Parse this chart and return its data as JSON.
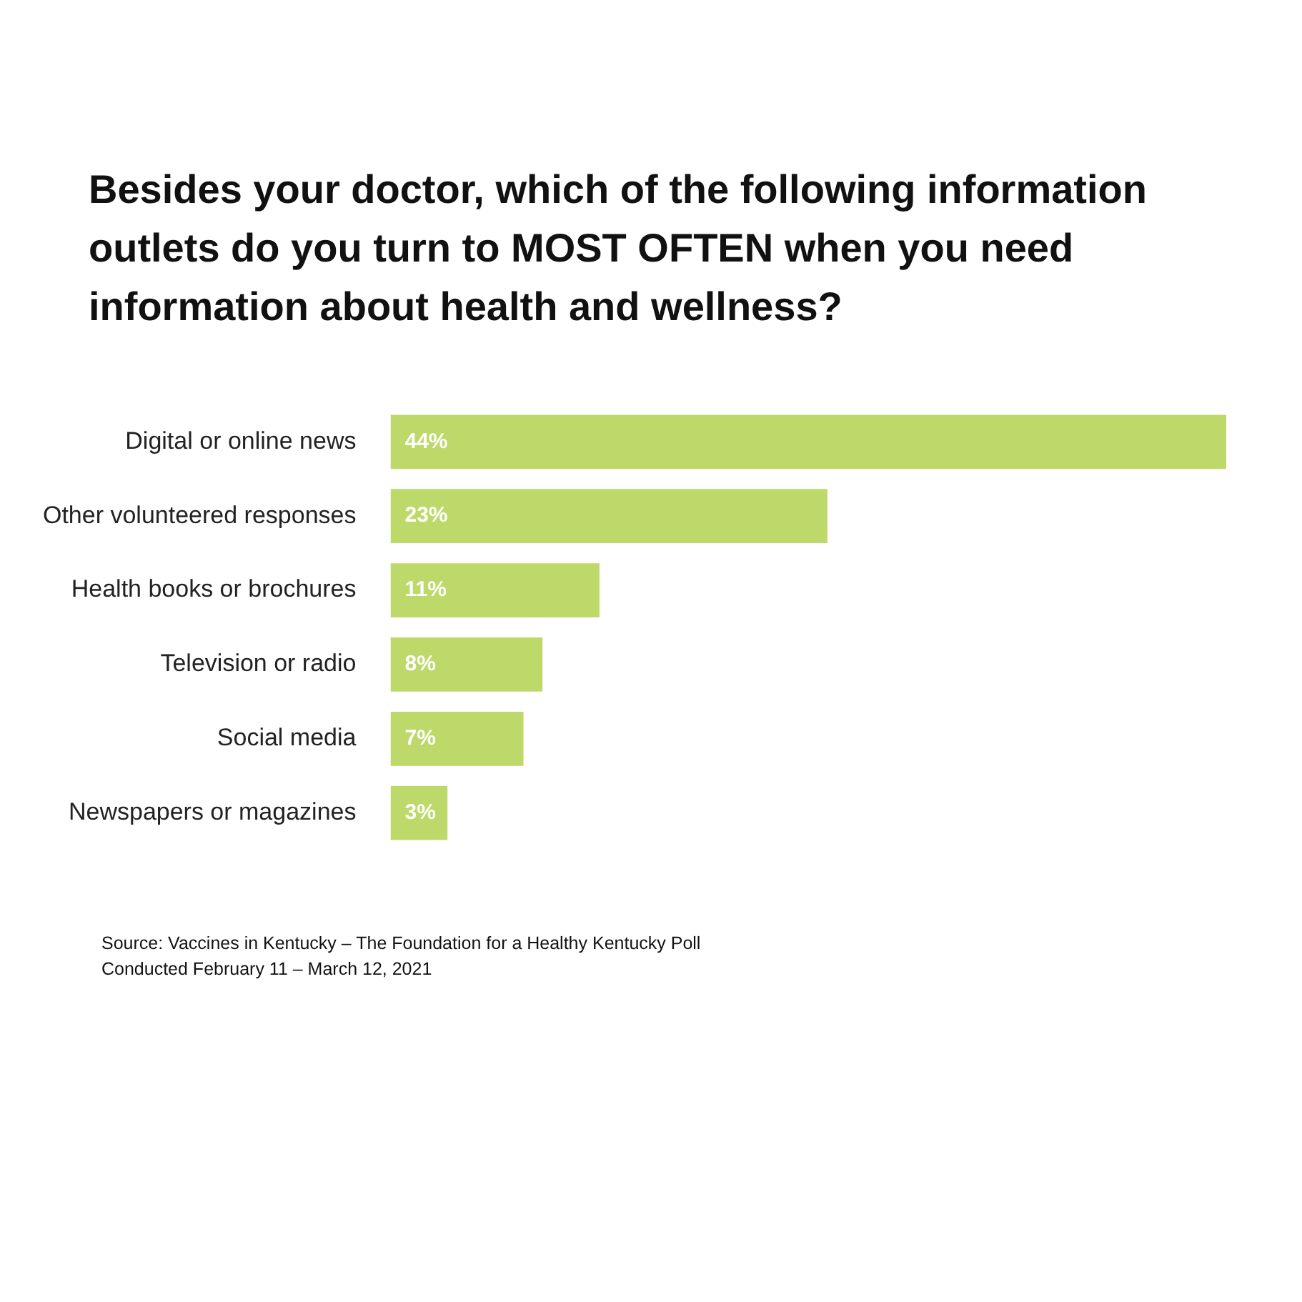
{
  "chart_data": {
    "type": "bar",
    "orientation": "horizontal",
    "title": "Besides your doctor, which of the following information outlets do you turn to MOST OFTEN when you need information about health and wellness?",
    "categories": [
      "Digital or online news",
      "Other volunteered responses",
      "Health books or brochures",
      "Television or radio",
      "Social media",
      "Newspapers or magazines"
    ],
    "values": [
      44,
      23,
      11,
      8,
      7,
      3
    ],
    "value_labels": [
      "44%",
      "23%",
      "11%",
      "8%",
      "7%",
      "3%"
    ],
    "color": "#bdd96a",
    "annotations": [
      "Source: Vaccines in Kentucky – The Foundation for a Healthy Kentucky Poll",
      "Conducted February 11 – March 12, 2021"
    ]
  }
}
